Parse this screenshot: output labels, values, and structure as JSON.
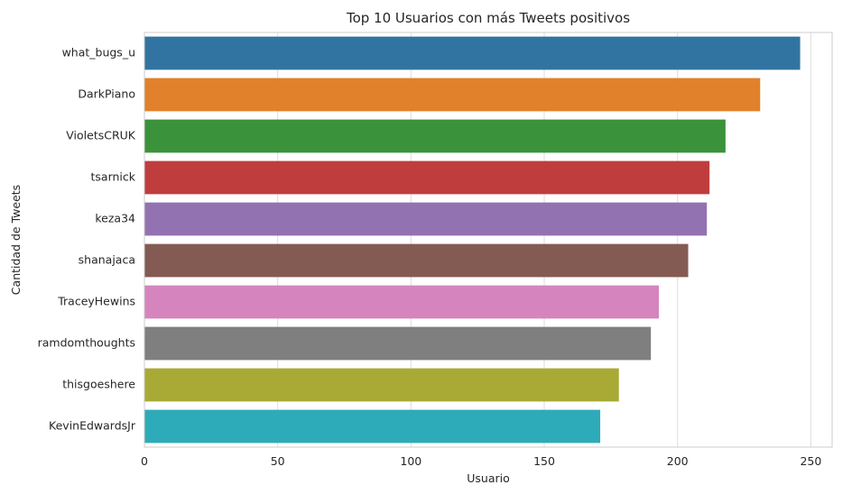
{
  "chart_data": {
    "type": "bar",
    "orientation": "horizontal",
    "title": "Top 10 Usuarios con más Tweets positivos",
    "xlabel": "Usuario",
    "ylabel": "Cantidad de Tweets",
    "categories": [
      "what_bugs_u",
      "DarkPiano",
      "VioletsCRUK",
      "tsarnick",
      "keza34",
      "shanajaca",
      "TraceyHewins",
      "ramdomthoughts",
      "thisgoeshere",
      "KevinEdwardsJr"
    ],
    "values": [
      246,
      231,
      218,
      212,
      211,
      204,
      193,
      190,
      178,
      171
    ],
    "colors": [
      "#3274a1",
      "#e1812c",
      "#3a923a",
      "#c03d3e",
      "#9372b2",
      "#845b53",
      "#d684bd",
      "#7f7f7f",
      "#a9aa35",
      "#2eabb8"
    ],
    "xlim": [
      0,
      258
    ],
    "xticks": [
      0,
      50,
      100,
      150,
      200,
      250
    ],
    "grid": true,
    "style": "whitegrid"
  }
}
